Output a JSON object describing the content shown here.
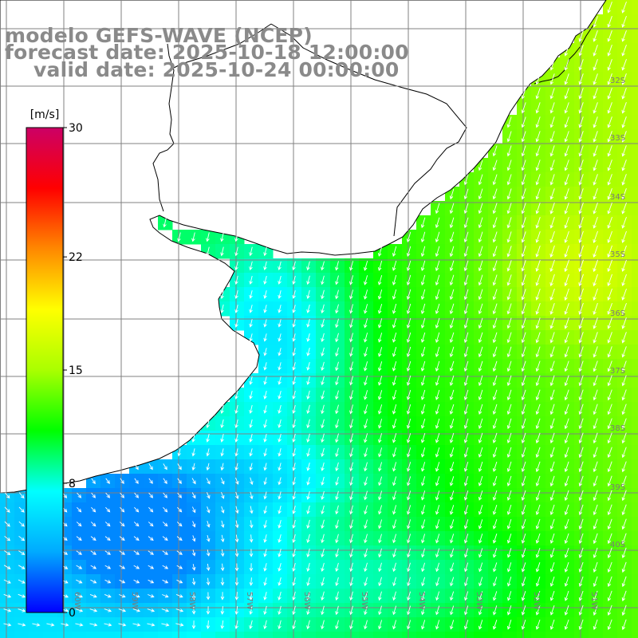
{
  "title": {
    "line1": "modelo GEFS-WAVE (NCEP)",
    "line2": "forecast date: 2025-10-18 12:00:00",
    "line3": "valid date: 2025-10-24 00:00:00"
  },
  "colorbar": {
    "unit": "[m/s]",
    "ticks": [
      "30",
      "22",
      "15",
      "8",
      "0"
    ],
    "tick_values": [
      30,
      22,
      15,
      8,
      0
    ],
    "min": 0,
    "max": 30,
    "colors": [
      "#0000ff",
      "#00aaff",
      "#00ffff",
      "#00ff00",
      "#aaff00",
      "#ffff00",
      "#ff8800",
      "#ff0000",
      "#cc0066"
    ]
  },
  "axes": {
    "lat_labels": [
      "32S",
      "33S",
      "34S",
      "35S",
      "36S",
      "37S",
      "38S",
      "39S",
      "40S"
    ],
    "lon_labels": [
      "60W",
      "59W",
      "58W",
      "57W",
      "56W",
      "55W",
      "54W",
      "53W",
      "52W",
      "51W"
    ]
  },
  "colors": {
    "land": "#ffffff",
    "coast": "#000000",
    "grid": "#808080",
    "vectors": "#ffffff",
    "title": "#8a8a8a"
  }
}
